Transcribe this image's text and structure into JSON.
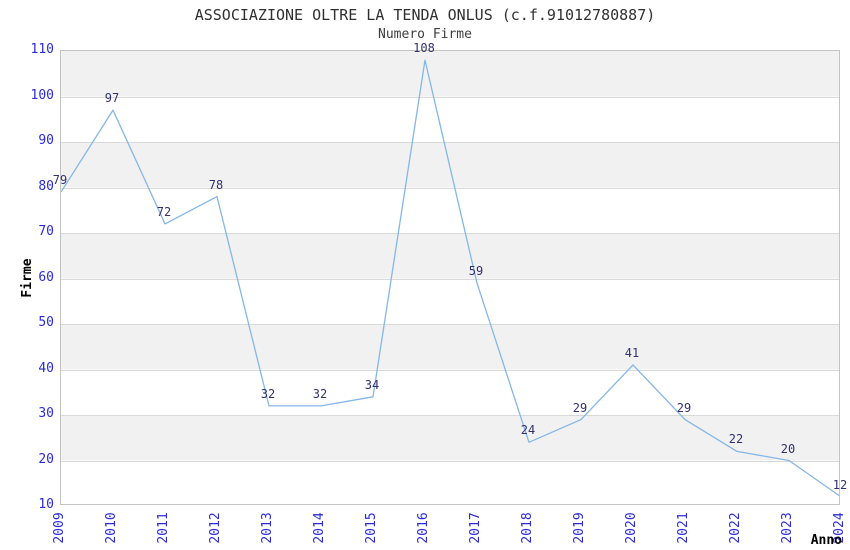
{
  "chart_data": {
    "type": "line",
    "title": "ASSOCIAZIONE OLTRE LA TENDA ONLUS (c.f.91012780887)",
    "subtitle": "Numero Firme",
    "xlabel": "Anno",
    "ylabel": "Firme",
    "categories": [
      "2009",
      "2010",
      "2011",
      "2012",
      "2013",
      "2014",
      "2015",
      "2016",
      "2017",
      "2018",
      "2019",
      "2020",
      "2021",
      "2022",
      "2023",
      "2024"
    ],
    "series": [
      {
        "name": "Numero Firme",
        "values": [
          79,
          97,
          72,
          78,
          32,
          32,
          34,
          108,
          59,
          24,
          29,
          41,
          29,
          22,
          20,
          12
        ]
      }
    ],
    "ylim": [
      10,
      110
    ],
    "ytick_step": 10,
    "yticks": [
      10,
      20,
      30,
      40,
      50,
      60,
      70,
      80,
      90,
      100,
      110
    ],
    "point_labels_shown": true,
    "grid": true,
    "legend_position": "none",
    "band_fill": "alternating-horizontal",
    "colors": {
      "line": "#85b6e8",
      "tick_labels": "#2b2bdb",
      "point_labels": "#323270",
      "band": "#f1f1f1",
      "band_alt": "#ffffff",
      "grid_line": "#d9d9d9",
      "plot_border": "#c4c4c4",
      "title": "#303030",
      "subtitle": "#3d3d3d",
      "axis_titles": "#000000"
    }
  }
}
